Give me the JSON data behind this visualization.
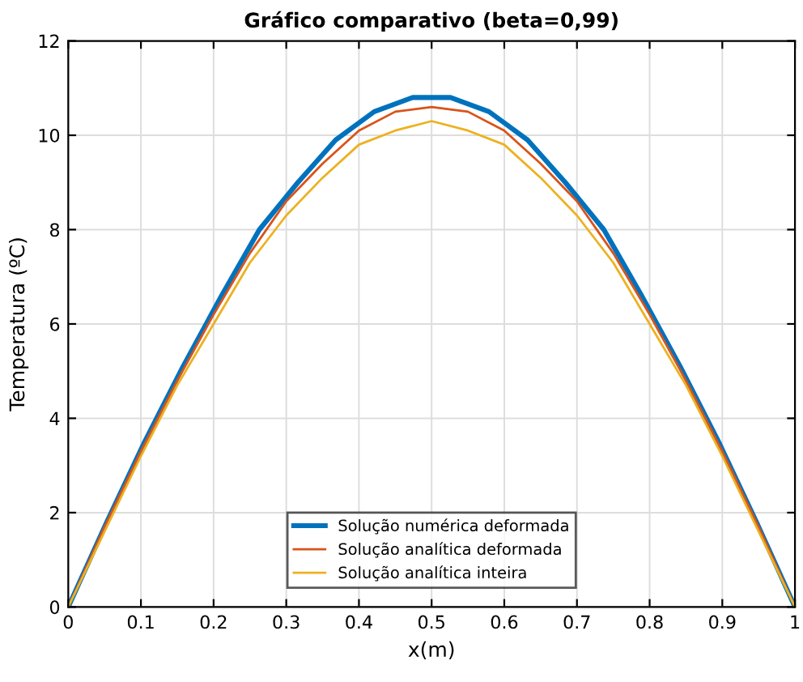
{
  "chart_data": {
    "type": "line",
    "title": "Gráfico comparativo (beta=0,99)",
    "xlabel": "x(m)",
    "ylabel": "Temperatura (ºC)",
    "xlim": [
      0,
      1
    ],
    "xticks": [
      0,
      0.1,
      0.2,
      0.3,
      0.4,
      0.5,
      0.6,
      0.7,
      0.8,
      0.9,
      1
    ],
    "ylim": [
      0,
      12
    ],
    "yticks": [
      0,
      2,
      4,
      6,
      8,
      10,
      12
    ],
    "grid": true,
    "legend": "bottom",
    "line_style": "solid",
    "marker": "none",
    "series": [
      {
        "name": "Solução numérica deformada",
        "color": "#0072bd",
        "x": [
          0,
          0.053,
          0.105,
          0.158,
          0.211,
          0.263,
          0.316,
          0.368,
          0.421,
          0.474,
          0.526,
          0.579,
          0.632,
          0.684,
          0.737,
          0.789,
          0.842,
          0.895,
          0.947,
          1
        ],
        "values": [
          0,
          1.8,
          3.5,
          5.1,
          6.6,
          8.0,
          9.0,
          9.9,
          10.5,
          10.8,
          10.8,
          10.5,
          9.9,
          9.0,
          8.0,
          6.6,
          5.1,
          3.5,
          1.8,
          0
        ]
      },
      {
        "name": "Solução analítica deformada",
        "color": "#d95319",
        "x": [
          0,
          0.05,
          0.1,
          0.15,
          0.2,
          0.25,
          0.3,
          0.35,
          0.4,
          0.45,
          0.5,
          0.55,
          0.6,
          0.65,
          0.7,
          0.75,
          0.8,
          0.85,
          0.9,
          0.95,
          1
        ],
        "values": [
          0,
          1.7,
          3.3,
          4.8,
          6.2,
          7.5,
          8.6,
          9.4,
          10.1,
          10.5,
          10.6,
          10.5,
          10.1,
          9.4,
          8.6,
          7.5,
          6.2,
          4.8,
          3.3,
          1.7,
          0
        ]
      },
      {
        "name": "Solução analítica inteira",
        "color": "#edb120",
        "x": [
          0,
          0.05,
          0.1,
          0.15,
          0.2,
          0.25,
          0.3,
          0.35,
          0.4,
          0.45,
          0.5,
          0.55,
          0.6,
          0.65,
          0.7,
          0.75,
          0.8,
          0.85,
          0.9,
          0.95,
          1
        ],
        "values": [
          0,
          1.6,
          3.2,
          4.7,
          6.0,
          7.3,
          8.3,
          9.1,
          9.8,
          10.1,
          10.3,
          10.1,
          9.8,
          9.1,
          8.3,
          7.3,
          6.0,
          4.7,
          3.2,
          1.6,
          0
        ]
      }
    ]
  }
}
